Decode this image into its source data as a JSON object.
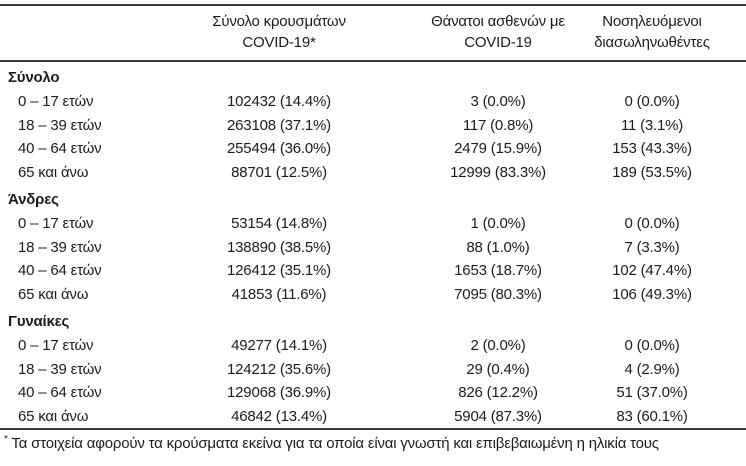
{
  "table": {
    "header": {
      "cases": [
        "Σύνολο κρουσμάτων",
        "COVID-19*"
      ],
      "deaths": [
        "Θάνατοι ασθενών με",
        "COVID-19"
      ],
      "intubated": [
        "Νοσηλευόμενοι",
        "διασωληνωθέντες"
      ]
    },
    "groups": [
      {
        "label": "Σύνολο",
        "rows": [
          {
            "age": "0 – 17 ετών",
            "cases": "102432 (14.4%)",
            "deaths": "3 (0.0%)",
            "intubated": "0 (0.0%)"
          },
          {
            "age": "18 – 39 ετών",
            "cases": "263108 (37.1%)",
            "deaths": "117 (0.8%)",
            "intubated": "11 (3.1%)"
          },
          {
            "age": "40 – 64 ετών",
            "cases": "255494 (36.0%)",
            "deaths": "2479 (15.9%)",
            "intubated": "153 (43.3%)"
          },
          {
            "age": "65 και άνω",
            "cases": "88701 (12.5%)",
            "deaths": "12999 (83.3%)",
            "intubated": "189 (53.5%)"
          }
        ]
      },
      {
        "label": "Άνδρες",
        "rows": [
          {
            "age": "0 – 17 ετών",
            "cases": "53154 (14.8%)",
            "deaths": "1 (0.0%)",
            "intubated": "0 (0.0%)"
          },
          {
            "age": "18 – 39 ετών",
            "cases": "138890 (38.5%)",
            "deaths": "88 (1.0%)",
            "intubated": "7 (3.3%)"
          },
          {
            "age": "40 – 64 ετών",
            "cases": "126412 (35.1%)",
            "deaths": "1653 (18.7%)",
            "intubated": "102 (47.4%)"
          },
          {
            "age": "65 και άνω",
            "cases": "41853 (11.6%)",
            "deaths": "7095 (80.3%)",
            "intubated": "106 (49.3%)"
          }
        ]
      },
      {
        "label": "Γυναίκες",
        "rows": [
          {
            "age": "0 – 17 ετών",
            "cases": "49277 (14.1%)",
            "deaths": "2 (0.0%)",
            "intubated": "0 (0.0%)"
          },
          {
            "age": "18 – 39 ετών",
            "cases": "124212 (35.6%)",
            "deaths": "29 (0.4%)",
            "intubated": "4 (2.9%)"
          },
          {
            "age": "40 – 64 ετών",
            "cases": "129068 (36.9%)",
            "deaths": "826 (12.2%)",
            "intubated": "51 (37.0%)"
          },
          {
            "age": "65 και άνω",
            "cases": "46842 (13.4%)",
            "deaths": "5904 (87.3%)",
            "intubated": "83 (60.1%)"
          }
        ]
      }
    ],
    "footnote": {
      "marker": "*",
      "text": "Τα στοιχεία αφορούν τα κρούσματα εκείνα για τα οποία είναι γνωστή και επιβεβαιωμένη η ηλικία τους"
    }
  }
}
